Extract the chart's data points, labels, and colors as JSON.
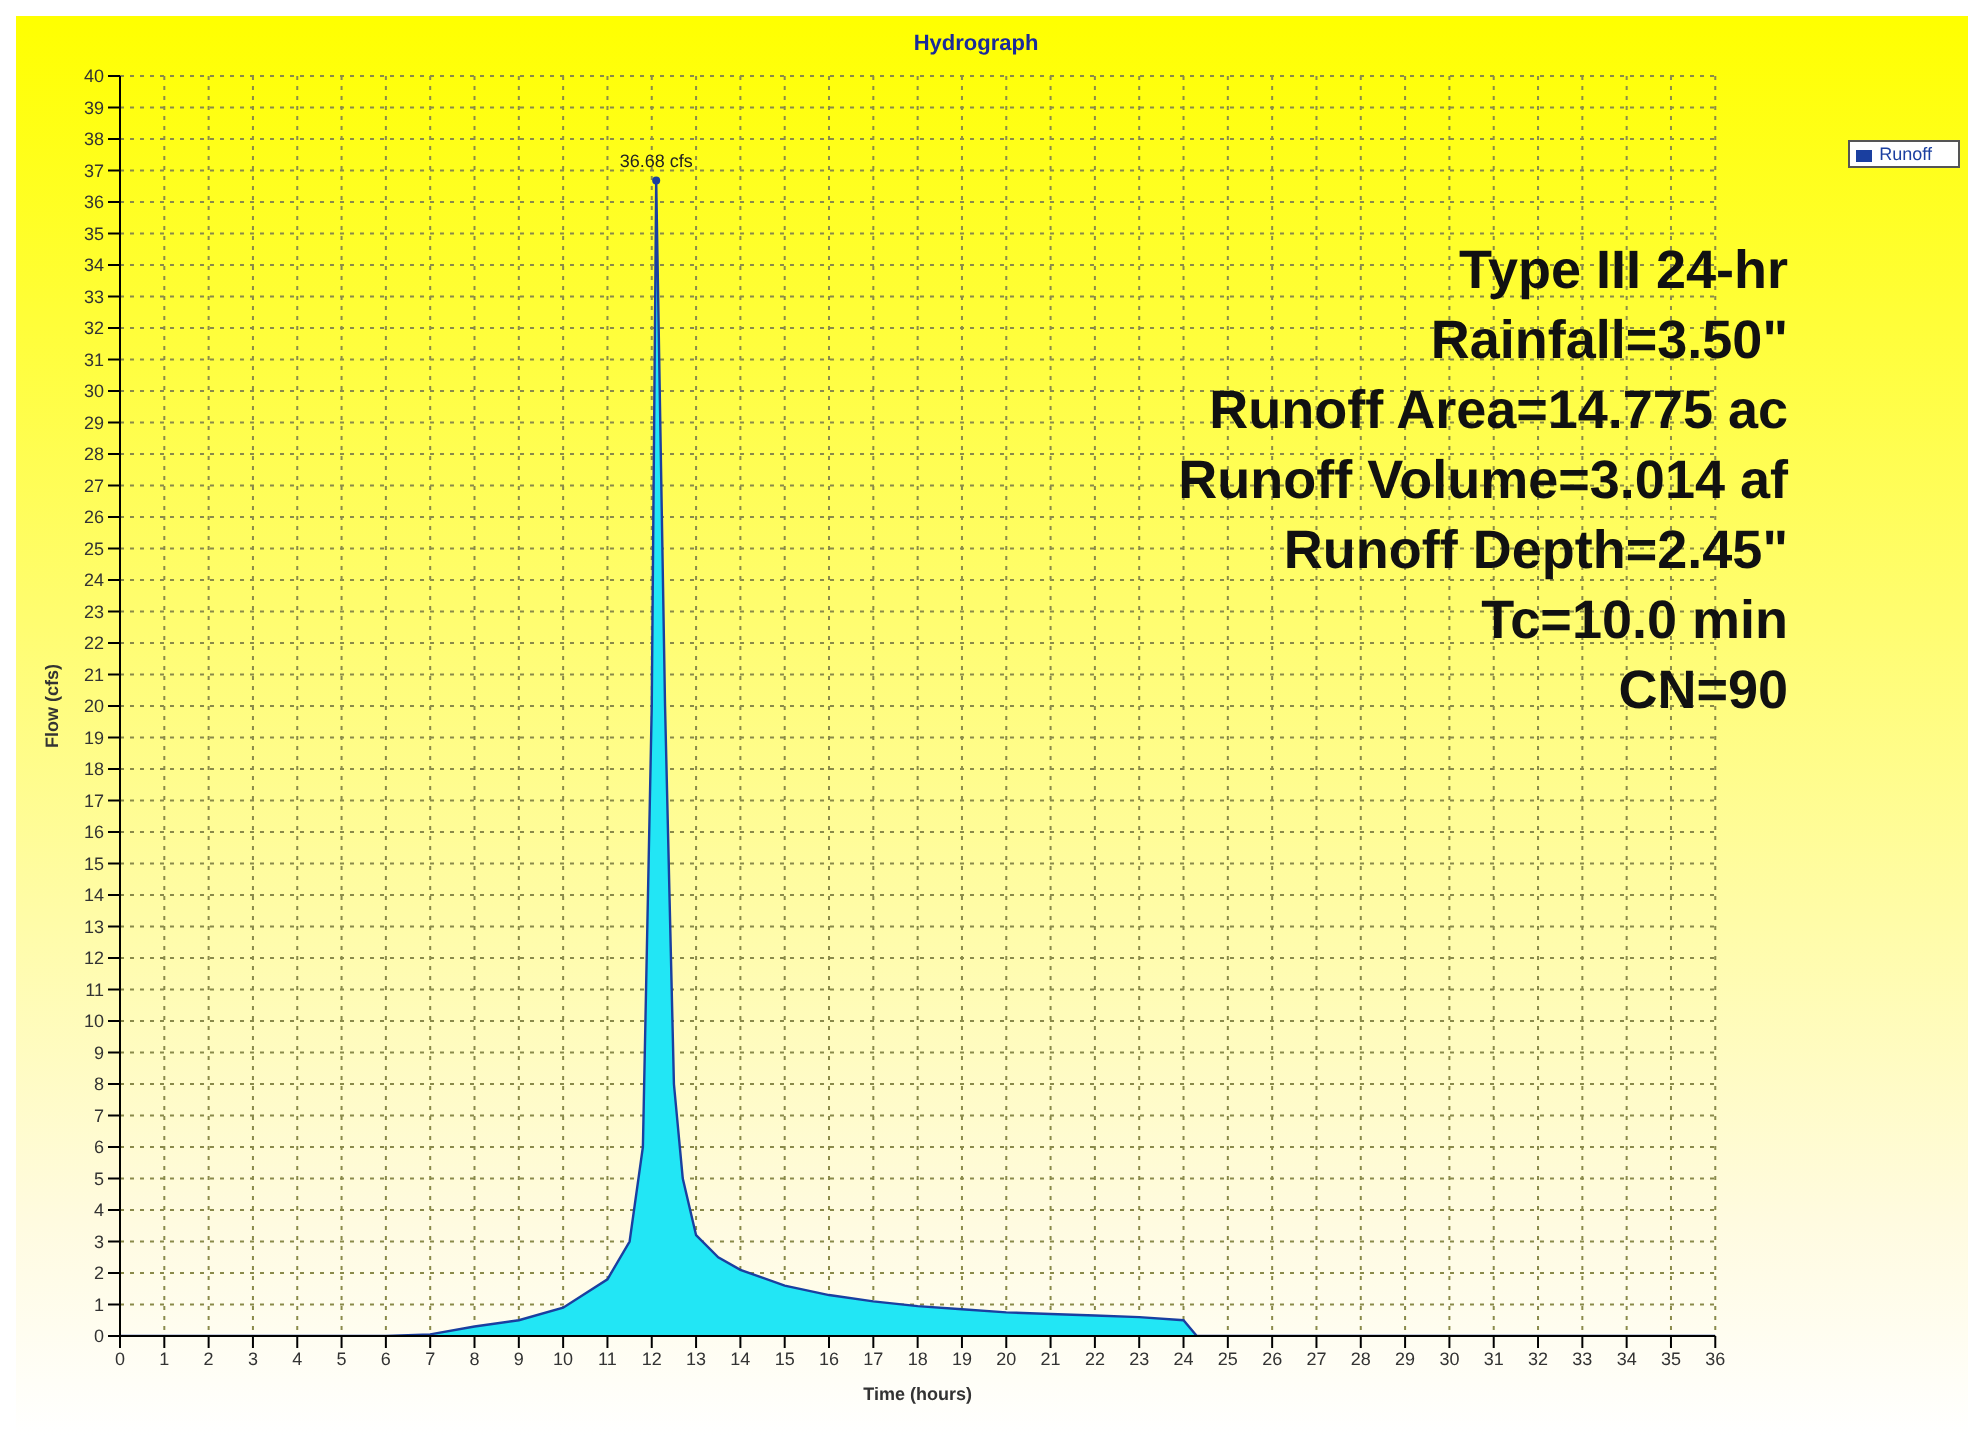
{
  "chart_data": {
    "type": "area",
    "title": "Hydrograph",
    "xlabel": "Time (hours)",
    "ylabel": "Flow (cfs)",
    "x": [
      0,
      6,
      7,
      8,
      9,
      10,
      11,
      11.5,
      11.8,
      12.0,
      12.1,
      12.3,
      12.5,
      12.7,
      13,
      13.5,
      14,
      15,
      16,
      17,
      18,
      19,
      20,
      21,
      22,
      23,
      24,
      24.3,
      25,
      30,
      36
    ],
    "series": [
      {
        "name": "Runoff",
        "color": "#22e6f5",
        "values": [
          0,
          0,
          0.05,
          0.3,
          0.5,
          0.9,
          1.8,
          3.0,
          6,
          20,
          36.68,
          20,
          8,
          5,
          3.2,
          2.5,
          2.1,
          1.6,
          1.3,
          1.1,
          0.95,
          0.85,
          0.75,
          0.7,
          0.65,
          0.6,
          0.5,
          0,
          0,
          0,
          0
        ]
      }
    ],
    "xlim": [
      0,
      36
    ],
    "xticks": [
      0,
      1,
      2,
      3,
      4,
      5,
      6,
      7,
      8,
      9,
      10,
      11,
      12,
      13,
      14,
      15,
      16,
      17,
      18,
      19,
      20,
      21,
      22,
      23,
      24,
      25,
      26,
      27,
      28,
      29,
      30,
      31,
      32,
      33,
      34,
      35,
      36
    ],
    "ylim": [
      0,
      40
    ],
    "yticks": [
      0,
      1,
      2,
      3,
      4,
      5,
      6,
      7,
      8,
      9,
      10,
      11,
      12,
      13,
      14,
      15,
      16,
      17,
      18,
      19,
      20,
      21,
      22,
      23,
      24,
      25,
      26,
      27,
      28,
      29,
      30,
      31,
      32,
      33,
      34,
      35,
      36,
      37,
      38,
      39,
      40
    ],
    "grid": true,
    "legend": "top right",
    "annotations": [
      {
        "text": "36.68 cfs",
        "x": 12.1,
        "y": 36.68
      },
      "Type III 24-hr",
      "Rainfall=3.50\"",
      "Runoff Area=14.775 ac",
      "Runoff Volume=3.014 af",
      "Runoff Depth=2.45\"",
      "Tc=10.0 min",
      "CN=90"
    ]
  }
}
